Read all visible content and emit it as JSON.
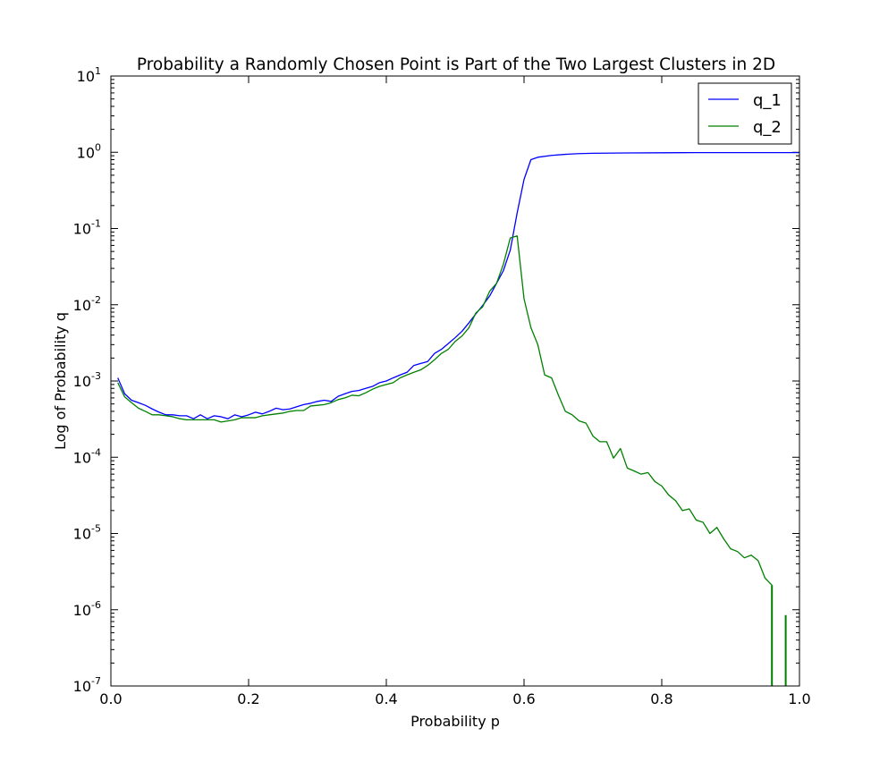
{
  "chart_data": {
    "type": "line",
    "title": "Probability a Randomly Chosen Point is Part of the Two Largest Clusters in 2D",
    "xlabel": "Probability p",
    "ylabel": "Log of Probability q",
    "xlim": [
      0.0,
      1.0
    ],
    "ylim": [
      1e-07,
      10
    ],
    "yscale": "log",
    "grid": false,
    "legend_position": "top-right",
    "x_ticks": [
      {
        "value": 0.0,
        "label": "0.0"
      },
      {
        "value": 0.2,
        "label": "0.2"
      },
      {
        "value": 0.4,
        "label": "0.4"
      },
      {
        "value": 0.6,
        "label": "0.6"
      },
      {
        "value": 0.8,
        "label": "0.8"
      },
      {
        "value": 1.0,
        "label": "1.0"
      }
    ],
    "y_ticks": [
      {
        "exp": 1,
        "base": "10",
        "sup": "1"
      },
      {
        "exp": 0,
        "base": "10",
        "sup": "0"
      },
      {
        "exp": -1,
        "base": "10",
        "sup": "-1"
      },
      {
        "exp": -2,
        "base": "10",
        "sup": "-2"
      },
      {
        "exp": -3,
        "base": "10",
        "sup": "-3"
      },
      {
        "exp": -4,
        "base": "10",
        "sup": "-4"
      },
      {
        "exp": -5,
        "base": "10",
        "sup": "-5"
      },
      {
        "exp": -6,
        "base": "10",
        "sup": "-6"
      },
      {
        "exp": -7,
        "base": "10",
        "sup": "-7"
      }
    ],
    "series": [
      {
        "name": "q_1",
        "color": "#0000ff",
        "x": [
          0.01,
          0.02,
          0.03,
          0.04,
          0.05,
          0.06,
          0.07,
          0.08,
          0.09,
          0.1,
          0.11,
          0.12,
          0.13,
          0.14,
          0.15,
          0.16,
          0.17,
          0.18,
          0.19,
          0.2,
          0.21,
          0.22,
          0.23,
          0.24,
          0.25,
          0.26,
          0.27,
          0.28,
          0.29,
          0.3,
          0.31,
          0.32,
          0.33,
          0.34,
          0.35,
          0.36,
          0.37,
          0.38,
          0.39,
          0.4,
          0.41,
          0.42,
          0.43,
          0.44,
          0.45,
          0.46,
          0.47,
          0.48,
          0.49,
          0.5,
          0.51,
          0.52,
          0.53,
          0.54,
          0.55,
          0.56,
          0.57,
          0.58,
          0.59,
          0.6,
          0.61,
          0.62,
          0.64,
          0.66,
          0.68,
          0.7,
          0.75,
          0.8,
          0.85,
          0.9,
          0.95,
          1.0
        ],
        "y": [
          0.0011,
          0.00068,
          0.00056,
          0.00052,
          0.00048,
          0.00043,
          0.00039,
          0.00036,
          0.00036,
          0.00035,
          0.00035,
          0.00032,
          0.00036,
          0.00032,
          0.00035,
          0.00034,
          0.00032,
          0.00036,
          0.00034,
          0.00036,
          0.00039,
          0.00037,
          0.0004,
          0.00044,
          0.00042,
          0.00043,
          0.00046,
          0.00049,
          0.00051,
          0.00054,
          0.00056,
          0.00054,
          0.00063,
          0.00068,
          0.00073,
          0.00075,
          0.0008,
          0.00085,
          0.00095,
          0.001,
          0.0011,
          0.0012,
          0.0013,
          0.0016,
          0.0017,
          0.0018,
          0.0023,
          0.0026,
          0.0031,
          0.0037,
          0.0045,
          0.0058,
          0.0076,
          0.0098,
          0.013,
          0.019,
          0.028,
          0.052,
          0.16,
          0.44,
          0.8,
          0.86,
          0.91,
          0.94,
          0.96,
          0.97,
          0.98,
          0.985,
          0.99,
          0.99,
          0.99,
          0.99
        ]
      },
      {
        "name": "q_2",
        "color": "#008000",
        "x": [
          0.01,
          0.02,
          0.03,
          0.04,
          0.05,
          0.06,
          0.07,
          0.08,
          0.09,
          0.1,
          0.11,
          0.12,
          0.13,
          0.14,
          0.15,
          0.16,
          0.17,
          0.18,
          0.19,
          0.2,
          0.21,
          0.22,
          0.23,
          0.24,
          0.25,
          0.26,
          0.27,
          0.28,
          0.29,
          0.3,
          0.31,
          0.32,
          0.33,
          0.34,
          0.35,
          0.36,
          0.37,
          0.38,
          0.39,
          0.4,
          0.41,
          0.42,
          0.43,
          0.44,
          0.45,
          0.46,
          0.47,
          0.48,
          0.49,
          0.5,
          0.51,
          0.52,
          0.53,
          0.54,
          0.55,
          0.56,
          0.57,
          0.58,
          0.59,
          0.6,
          0.61,
          0.62,
          0.63,
          0.64,
          0.65,
          0.66,
          0.67,
          0.68,
          0.69,
          0.7,
          0.71,
          0.72,
          0.73,
          0.74,
          0.75,
          0.76,
          0.77,
          0.78,
          0.79,
          0.8,
          0.81,
          0.82,
          0.83,
          0.84,
          0.85,
          0.86,
          0.87,
          0.88,
          0.89,
          0.9,
          0.91,
          0.92,
          0.93,
          0.94,
          0.95,
          0.96
        ],
        "y": [
          0.00095,
          0.00062,
          0.00052,
          0.00044,
          0.0004,
          0.00036,
          0.00036,
          0.00035,
          0.00034,
          0.00032,
          0.00031,
          0.00031,
          0.00031,
          0.00031,
          0.00031,
          0.00029,
          0.0003,
          0.00031,
          0.00033,
          0.00033,
          0.00033,
          0.00035,
          0.00036,
          0.00037,
          0.00038,
          0.0004,
          0.00041,
          0.00041,
          0.00047,
          0.00048,
          0.00049,
          0.00052,
          0.00057,
          0.0006,
          0.00065,
          0.00064,
          0.0007,
          0.00078,
          0.00085,
          0.0009,
          0.00095,
          0.0011,
          0.0012,
          0.0013,
          0.0014,
          0.0016,
          0.0019,
          0.0023,
          0.0026,
          0.0033,
          0.0039,
          0.005,
          0.0078,
          0.0094,
          0.015,
          0.019,
          0.034,
          0.075,
          0.08,
          0.012,
          0.005,
          0.003,
          0.0012,
          0.0011,
          0.00065,
          0.0004,
          0.00036,
          0.0003,
          0.00028,
          0.00019,
          0.00016,
          0.00016,
          9.75e-05,
          0.00013,
          7.2e-05,
          6.6e-05,
          6e-05,
          6.3e-05,
          4.8e-05,
          4.2e-05,
          3.2e-05,
          2.7e-05,
          2e-05,
          2.1e-05,
          1.5e-05,
          1.4e-05,
          1e-05,
          1.2e-05,
          8.5e-06,
          6.3e-06,
          5.8e-06,
          4.8e-06,
          5.2e-06,
          4.4e-06,
          2.6e-06,
          2.1e-06
        ]
      }
    ],
    "extra_marks": [
      {
        "series": "q_2",
        "x": 0.96,
        "y_from": 2.1e-06,
        "y_to": 1e-07
      },
      {
        "series": "q_2",
        "x": 0.98,
        "y_from": 8.5e-07,
        "y_to": 1e-07
      }
    ]
  }
}
